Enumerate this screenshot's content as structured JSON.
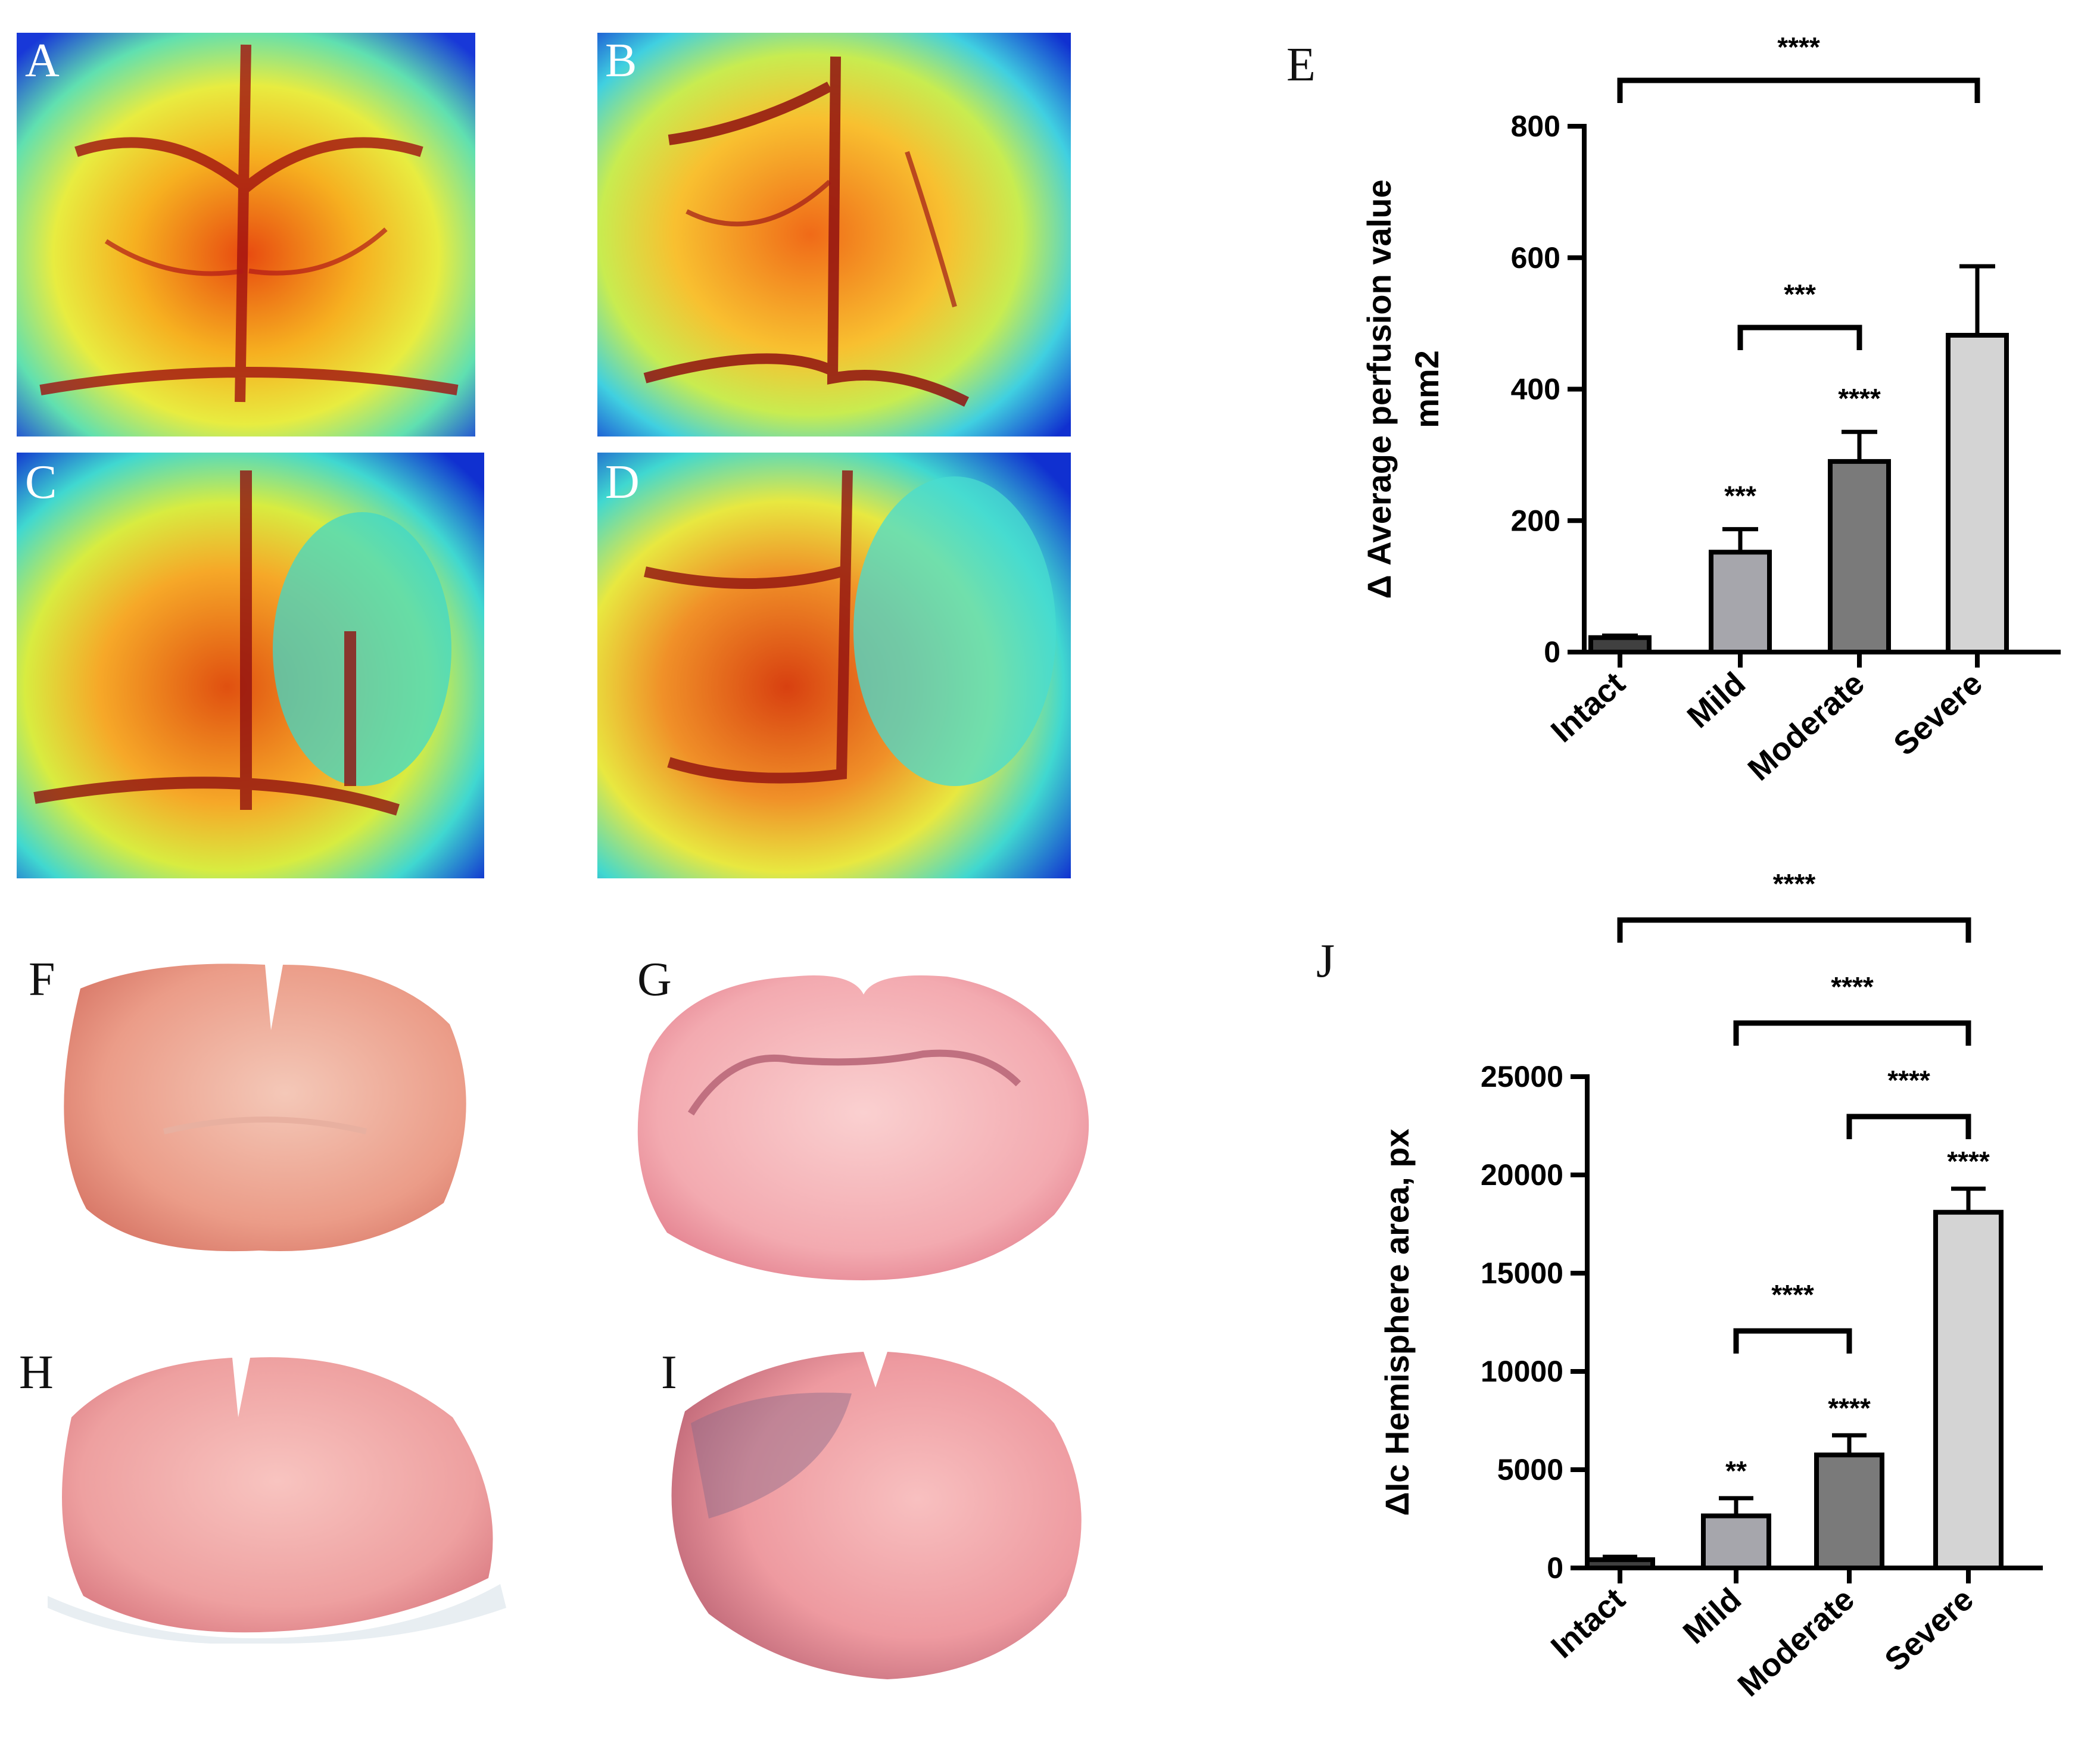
{
  "panels": {
    "a": "A",
    "b": "B",
    "c": "C",
    "d": "D",
    "e": "E",
    "f": "F",
    "g": "G",
    "h": "H",
    "i": "I",
    "j": "J"
  },
  "colors": {
    "perfusion_low": "#1030d0",
    "perfusion_mid": "#30e0d0",
    "perfusion_yellow": "#f0f040",
    "perfusion_high": "#e03010",
    "tissue_base": "#f2a0a0",
    "tissue_dark": "#e27070",
    "bar_intact": "#404040",
    "bar_mild": "#a6a6ac",
    "bar_moderate": "#7a7a7a",
    "bar_severe": "#d4d4d4"
  },
  "chart_data": [
    {
      "panel": "E",
      "type": "bar",
      "title": "",
      "categories": [
        "Intact",
        "Mild",
        "Moderate",
        "Severe"
      ],
      "values": [
        22,
        152,
        290,
        482
      ],
      "errors": [
        3,
        35,
        45,
        105
      ],
      "ylabel_line1": "Δ Average perfusion value",
      "ylabel_line2": "mm2",
      "xlabel": "",
      "ylim": [
        0,
        800
      ],
      "yticks": [
        "0",
        "200",
        "400",
        "600",
        "800"
      ],
      "bar_annotations": [
        "",
        "***",
        "****",
        ""
      ],
      "comparisons": [
        {
          "from": "Intact",
          "to": "Severe",
          "label": "****"
        },
        {
          "from": "Mild",
          "to": "Moderate",
          "label": "***"
        }
      ]
    },
    {
      "panel": "J",
      "type": "bar",
      "title": "",
      "categories": [
        "Intact",
        "Mild",
        "Moderate",
        "Severe"
      ],
      "values": [
        420,
        2650,
        5750,
        18100
      ],
      "errors": [
        150,
        900,
        1000,
        1200
      ],
      "ylabel_line1": "ΔIc Hemisphere area, px",
      "ylabel_line2": "",
      "xlabel": "",
      "ylim": [
        0,
        25000
      ],
      "yticks": [
        "0",
        "5000",
        "10000",
        "15000",
        "20000",
        "25000"
      ],
      "bar_annotations": [
        "",
        "**",
        "****",
        "****"
      ],
      "comparisons": [
        {
          "from": "Intact",
          "to": "Severe",
          "label": "****"
        },
        {
          "from": "Mild",
          "to": "Severe",
          "label": "****"
        },
        {
          "from": "Moderate",
          "to": "Severe",
          "label": "****"
        },
        {
          "from": "Mild",
          "to": "Moderate",
          "label": "****"
        }
      ]
    }
  ]
}
